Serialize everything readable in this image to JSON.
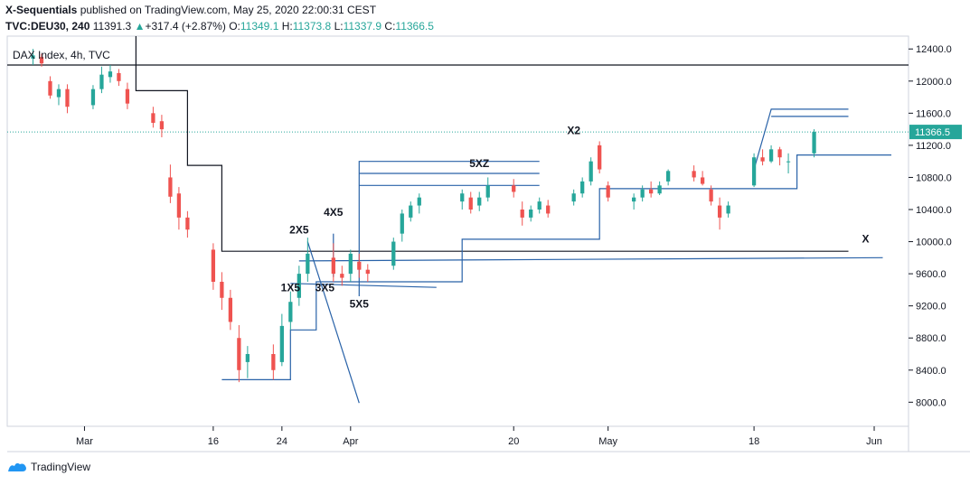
{
  "header": {
    "author": "X-Sequentials",
    "published_text": "published on TradingView.com, May 25, 2020 22:00:31 CEST",
    "symbol": "TVC:DEU30, 240",
    "last": "11391.3",
    "change_arrow": "▲",
    "change": "+317.4 (+2.87%)",
    "o_label": "O:",
    "o_value": "11349.1",
    "h_label": "H:",
    "h_value": "11373.8",
    "l_label": "L:",
    "l_value": "11337.9",
    "c_label": "C:",
    "c_value": "11366.5"
  },
  "footer": {
    "brand": "TradingView"
  },
  "colors": {
    "up": "#26a69a",
    "down": "#ef5350",
    "drawing": "#2962a8",
    "price_badge": "#26a69a"
  },
  "chart_data": {
    "type": "candlestick",
    "title": "DAX Index, 4h, TVC",
    "price_label": "11366.5",
    "ylim": [
      7700,
      12560
    ],
    "y_ticks": [
      12400,
      12000,
      11600,
      11200,
      10800,
      10400,
      10000,
      9600,
      9200,
      8800,
      8400,
      8000
    ],
    "y_tick_labels": [
      "12400.0",
      "12000.0",
      "11600.0",
      "11200.0",
      "10800.0",
      "10400.0",
      "10000.0",
      "9600.0",
      "9200.0",
      "8800.0",
      "8400.0",
      "8000.0"
    ],
    "x_ticks": [
      {
        "date": "2020-03-01",
        "label": "Mar"
      },
      {
        "date": "2020-03-16",
        "label": "16"
      },
      {
        "date": "2020-03-24",
        "label": "24"
      },
      {
        "date": "2020-04-01",
        "label": "Apr"
      },
      {
        "date": "2020-04-20",
        "label": "20"
      },
      {
        "date": "2020-05-01",
        "label": "May"
      },
      {
        "date": "2020-05-18",
        "label": "18"
      },
      {
        "date": "2020-06-01",
        "label": "Jun"
      }
    ],
    "x_range": [
      "2020-02-21",
      "2020-06-05"
    ],
    "annotations": [
      {
        "text": "2X5",
        "date": "2020-03-26",
        "price": 10100
      },
      {
        "text": "1X5",
        "date": "2020-03-25",
        "price": 9380
      },
      {
        "text": "4X5",
        "date": "2020-03-30",
        "price": 10320
      },
      {
        "text": "3X5",
        "date": "2020-03-29",
        "price": 9380
      },
      {
        "text": "5X5",
        "date": "2020-04-02",
        "price": 9180
      },
      {
        "text": "5XZ",
        "date": "2020-04-16",
        "price": 10930
      },
      {
        "text": "X2",
        "date": "2020-04-27",
        "price": 11340
      },
      {
        "text": "X",
        "date": "2020-05-31",
        "price": 9990
      }
    ],
    "candles": [
      [
        "2020-02-24",
        12280,
        12400,
        12200,
        12320
      ],
      [
        "2020-02-25",
        12300,
        12340,
        12180,
        12220
      ],
      [
        "2020-02-26",
        12000,
        12060,
        11780,
        11820
      ],
      [
        "2020-02-27",
        11800,
        11960,
        11700,
        11900
      ],
      [
        "2020-02-28",
        11900,
        11960,
        11600,
        11680
      ],
      [
        "2020-03-02",
        11700,
        11950,
        11650,
        11900
      ],
      [
        "2020-03-03",
        11900,
        12180,
        11850,
        12080
      ],
      [
        "2020-03-04",
        12050,
        12200,
        11980,
        12120
      ],
      [
        "2020-03-05",
        12100,
        12150,
        11940,
        12000
      ],
      [
        "2020-03-06",
        11900,
        11980,
        11650,
        11720
      ],
      [
        "2020-03-09",
        11600,
        11680,
        11420,
        11480
      ],
      [
        "2020-03-10",
        11500,
        11580,
        11300,
        11400
      ],
      [
        "2020-03-11",
        10800,
        10960,
        10480,
        10560
      ],
      [
        "2020-03-12",
        10600,
        10680,
        10150,
        10300
      ],
      [
        "2020-03-13",
        10300,
        10380,
        10050,
        10150
      ],
      [
        "2020-03-16",
        9900,
        9980,
        9400,
        9500
      ],
      [
        "2020-03-17",
        9500,
        9620,
        9150,
        9300
      ],
      [
        "2020-03-18",
        9300,
        9400,
        8900,
        9000
      ],
      [
        "2020-03-19",
        8800,
        8960,
        8250,
        8400
      ],
      [
        "2020-03-20",
        8500,
        8700,
        8300,
        8600
      ],
      [
        "2020-03-23",
        8600,
        8720,
        8280,
        8400
      ],
      [
        "2020-03-24",
        8500,
        9100,
        8450,
        8950
      ],
      [
        "2020-03-25",
        9000,
        9380,
        8900,
        9250
      ],
      [
        "2020-03-26",
        9300,
        9700,
        9200,
        9600
      ],
      [
        "2020-03-27",
        9600,
        10050,
        9500,
        9850
      ],
      [
        "2020-03-30",
        9800,
        9980,
        9500,
        9600
      ],
      [
        "2020-03-31",
        9600,
        9700,
        9450,
        9550
      ],
      [
        "2020-04-01",
        9600,
        9900,
        9500,
        9850
      ],
      [
        "2020-04-02",
        9750,
        9850,
        9550,
        9650
      ],
      [
        "2020-04-03",
        9650,
        9720,
        9500,
        9600
      ],
      [
        "2020-04-06",
        9700,
        10050,
        9650,
        10000
      ],
      [
        "2020-04-07",
        10100,
        10400,
        10000,
        10350
      ],
      [
        "2020-04-08",
        10300,
        10500,
        10250,
        10450
      ],
      [
        "2020-04-09",
        10450,
        10600,
        10350,
        10550
      ],
      [
        "2020-04-14",
        10500,
        10650,
        10400,
        10600
      ],
      [
        "2020-04-15",
        10550,
        10620,
        10350,
        10400
      ],
      [
        "2020-04-16",
        10450,
        10620,
        10380,
        10550
      ],
      [
        "2020-04-17",
        10550,
        10800,
        10500,
        10700
      ],
      [
        "2020-04-20",
        10700,
        10780,
        10550,
        10620
      ],
      [
        "2020-04-21",
        10400,
        10500,
        10200,
        10300
      ],
      [
        "2020-04-22",
        10300,
        10450,
        10250,
        10400
      ],
      [
        "2020-04-23",
        10400,
        10550,
        10350,
        10500
      ],
      [
        "2020-04-24",
        10450,
        10520,
        10300,
        10350
      ],
      [
        "2020-04-27",
        10500,
        10650,
        10450,
        10600
      ],
      [
        "2020-04-28",
        10600,
        10800,
        10550,
        10750
      ],
      [
        "2020-04-29",
        10750,
        11050,
        10700,
        11000
      ],
      [
        "2020-04-30",
        11200,
        11250,
        10850,
        10900
      ],
      [
        "2020-05-01",
        10700,
        10750,
        10500,
        10550
      ],
      [
        "2020-05-04",
        10500,
        10600,
        10400,
        10550
      ],
      [
        "2020-05-05",
        10550,
        10700,
        10500,
        10650
      ],
      [
        "2020-05-06",
        10650,
        10750,
        10550,
        10600
      ],
      [
        "2020-05-07",
        10600,
        10750,
        10580,
        10700
      ],
      [
        "2020-05-08",
        10750,
        10900,
        10700,
        10880
      ],
      [
        "2020-05-11",
        10880,
        10950,
        10750,
        10800
      ],
      [
        "2020-05-12",
        10800,
        10880,
        10700,
        10720
      ],
      [
        "2020-05-13",
        10650,
        10700,
        10450,
        10500
      ],
      [
        "2020-05-14",
        10450,
        10550,
        10150,
        10300
      ],
      [
        "2020-05-15",
        10350,
        10500,
        10300,
        10450
      ],
      [
        "2020-05-18",
        10700,
        11100,
        10680,
        11050
      ],
      [
        "2020-05-19",
        11050,
        11150,
        10950,
        11000
      ],
      [
        "2020-05-20",
        11000,
        11200,
        10980,
        11150
      ],
      [
        "2020-05-21",
        11150,
        11180,
        10950,
        11050
      ],
      [
        "2020-05-22",
        11000,
        11100,
        10850,
        11000
      ],
      [
        "2020-05-25",
        11100,
        11400,
        11050,
        11366.5
      ]
    ],
    "lines": [
      {
        "name": "resistance-12200",
        "color": "#131722",
        "points": [
          [
            "2020-02-21",
            12200
          ],
          [
            "2020-06-05",
            12200
          ]
        ]
      },
      {
        "name": "step-black",
        "color": "#131722",
        "points": [
          [
            "2020-03-07",
            12560
          ],
          [
            "2020-03-07",
            11880
          ],
          [
            "2020-03-13",
            11880
          ],
          [
            "2020-03-13",
            10950
          ],
          [
            "2020-03-17",
            10950
          ],
          [
            "2020-03-17",
            9880
          ],
          [
            "2020-05-29",
            9880
          ]
        ]
      },
      {
        "name": "step-blue-lower",
        "color": "#2962a8",
        "points": [
          [
            "2020-03-17",
            8280
          ],
          [
            "2020-03-25",
            8280
          ],
          [
            "2020-03-25",
            8900
          ],
          [
            "2020-03-28",
            8900
          ],
          [
            "2020-03-28",
            9500
          ],
          [
            "2020-04-14",
            9500
          ],
          [
            "2020-04-14",
            10030
          ],
          [
            "2020-04-30",
            10030
          ],
          [
            "2020-04-30",
            10660
          ],
          [
            "2020-05-23",
            10660
          ],
          [
            "2020-05-23",
            11080
          ],
          [
            "2020-06-03",
            11080
          ]
        ]
      },
      {
        "name": "box-top-5xz",
        "color": "#2962a8",
        "points": [
          [
            "2020-04-02",
            9320
          ],
          [
            "2020-04-02",
            11000
          ],
          [
            "2020-04-23",
            11000
          ]
        ]
      },
      {
        "name": "level-10850",
        "color": "#2962a8",
        "points": [
          [
            "2020-04-02",
            10850
          ],
          [
            "2020-04-23",
            10850
          ]
        ]
      },
      {
        "name": "level-10700",
        "color": "#2962a8",
        "points": [
          [
            "2020-04-02",
            10700
          ],
          [
            "2020-04-23",
            10700
          ]
        ]
      },
      {
        "name": "diagonal-down",
        "color": "#2962a8",
        "points": [
          [
            "2020-03-27",
            10000
          ],
          [
            "2020-04-02",
            7990
          ]
        ]
      },
      {
        "name": "level-9500",
        "color": "#2962a8",
        "points": [
          [
            "2020-03-25",
            9480
          ],
          [
            "2020-04-11",
            9430
          ]
        ]
      },
      {
        "name": "x-level",
        "color": "#2962a8",
        "points": [
          [
            "2020-03-26",
            9760
          ],
          [
            "2020-06-02",
            9800
          ]
        ]
      },
      {
        "name": "4x5-tick",
        "color": "#2962a8",
        "points": [
          [
            "2020-03-30",
            10100
          ],
          [
            "2020-03-30",
            9560
          ]
        ]
      },
      {
        "name": "channel-up",
        "color": "#2962a8",
        "points": [
          [
            "2020-05-18",
            10900
          ],
          [
            "2020-05-20",
            11650
          ],
          [
            "2020-05-29",
            11650
          ]
        ]
      },
      {
        "name": "level-11560",
        "color": "#2962a8",
        "points": [
          [
            "2020-05-20",
            11560
          ],
          [
            "2020-05-29",
            11560
          ]
        ]
      }
    ]
  }
}
